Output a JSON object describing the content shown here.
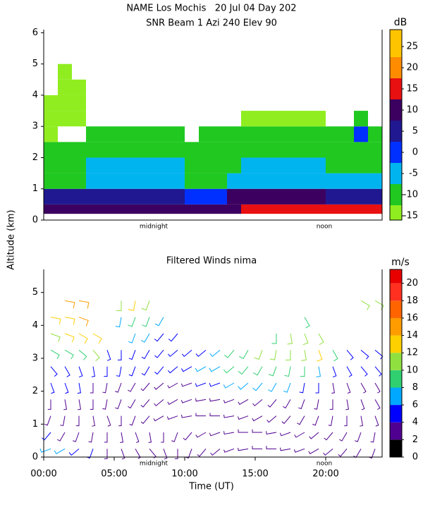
{
  "chart_data": [
    {
      "type": "heatmap",
      "title": "NAME Los Mochis   20 Jul 04 Day 202",
      "subtitle": "SNR Beam 1 Azi 240 Elev 90",
      "xlim": [
        0,
        24
      ],
      "ylim": [
        0,
        6.1
      ],
      "yticks": [
        0,
        1,
        2,
        3,
        4,
        5,
        6
      ],
      "annotations": [
        {
          "text": "midnight",
          "x": 7.8
        },
        {
          "text": "noon",
          "x": 19.9
        }
      ],
      "x_edges": [
        0,
        1,
        2,
        3,
        4,
        5,
        6,
        7,
        8,
        9,
        10,
        11,
        12,
        13,
        14,
        15,
        16,
        17,
        18,
        19,
        20,
        21,
        22,
        23,
        24
      ],
      "y_edges": [
        0.2,
        0.5,
        1,
        1.5,
        2,
        2.5,
        3,
        3.5,
        4,
        4.5,
        5
      ],
      "values": [
        [
          12,
          12,
          12,
          12,
          10,
          10,
          10,
          10,
          8,
          8,
          8,
          10,
          10,
          10,
          13,
          13,
          13,
          13,
          13,
          14,
          14,
          14,
          14,
          14
        ],
        [
          5,
          5,
          5,
          3,
          3,
          3,
          3,
          3,
          3,
          3,
          2,
          2,
          2,
          10,
          10,
          10,
          10,
          10,
          10,
          10,
          6,
          6,
          6,
          6
        ],
        [
          -8,
          -8,
          -8,
          -3,
          -3,
          -3,
          -3,
          -3,
          -3,
          -3,
          -8,
          -8,
          -8,
          -3,
          -3,
          -3,
          -3,
          -3,
          -3,
          -3,
          -5,
          -5,
          -5,
          -5
        ],
        [
          -10,
          -10,
          -10,
          -6,
          -6,
          -6,
          -6,
          -6,
          -6,
          -6,
          -10,
          -10,
          -10,
          -10,
          -7,
          -7,
          -7,
          -7,
          -7,
          -7,
          -8,
          -8,
          -8,
          -8
        ],
        [
          -12,
          -12,
          -12,
          -9,
          -9,
          -9,
          -9,
          -9,
          -9,
          -9,
          -12,
          -12,
          -12,
          -12,
          -9,
          -9,
          -9,
          -9,
          -9,
          -9,
          -10,
          -10,
          -10,
          -10
        ],
        [
          -13,
          null,
          null,
          -12,
          -12,
          -12,
          -12,
          -12,
          -12,
          -12,
          null,
          -11,
          -11,
          -11,
          -11,
          -11,
          -11,
          -11,
          -11,
          -11,
          -11,
          -11,
          0,
          -11
        ],
        [
          -14,
          -14,
          -13,
          null,
          null,
          null,
          null,
          null,
          null,
          null,
          null,
          null,
          null,
          null,
          -14,
          -14,
          -14,
          -14,
          -14,
          -14,
          null,
          null,
          -12,
          null
        ],
        [
          -13,
          -14,
          -14,
          null,
          null,
          null,
          null,
          null,
          null,
          null,
          null,
          null,
          null,
          null,
          null,
          null,
          null,
          null,
          null,
          null,
          null,
          null,
          null,
          null
        ],
        [
          null,
          -14,
          -14,
          null,
          null,
          null,
          null,
          null,
          null,
          null,
          null,
          null,
          null,
          null,
          null,
          null,
          null,
          null,
          null,
          null,
          null,
          null,
          null,
          null
        ],
        [
          null,
          -14,
          null,
          null,
          null,
          null,
          null,
          null,
          null,
          null,
          null,
          null,
          null,
          null,
          null,
          null,
          null,
          null,
          null,
          null,
          null,
          null,
          null,
          null
        ]
      ],
      "colorbar": {
        "label": "dB",
        "clim": [
          -16,
          29
        ],
        "ticks": [
          -15,
          -10,
          -5,
          0,
          5,
          10,
          15,
          20,
          25
        ],
        "levels": [
          -16,
          -12.5,
          -7.5,
          -2.5,
          2.5,
          7.5,
          12.5,
          17.5,
          22.5,
          29
        ],
        "colors": [
          "#90ee20",
          "#20c820",
          "#00b4f0",
          "#0030ff",
          "#201890",
          "#3c0060",
          "#e81010",
          "#ff8c00",
          "#ffc400"
        ]
      }
    },
    {
      "type": "barbs",
      "title": "Filtered Winds nima",
      "xlabel": "Time (UT)",
      "ylabel": "Altitude (km)",
      "xlim": [
        0,
        24
      ],
      "ylim": [
        0,
        5.7
      ],
      "xticks": [
        {
          "value": 0,
          "label": "00:00"
        },
        {
          "value": 5,
          "label": "05:00"
        },
        {
          "value": 10,
          "label": "10:00"
        },
        {
          "value": 15,
          "label": "15:00"
        },
        {
          "value": 20,
          "label": "20:00"
        }
      ],
      "yticks": [
        0,
        1,
        2,
        3,
        4,
        5
      ],
      "annotations": [
        {
          "text": "midnight",
          "x": 7.8
        },
        {
          "text": "noon",
          "x": 19.9
        }
      ],
      "x": [
        0.5,
        1.5,
        2.5,
        3.5,
        4.5,
        5.5,
        6.5,
        7.5,
        8.5,
        9.5,
        10.5,
        11.5,
        12.5,
        13.5,
        14.5,
        15.5,
        16.5,
        17.5,
        18.5,
        19.5,
        20.5,
        21.5,
        22.5,
        23.5
      ],
      "altitudes": [
        0.25,
        0.75,
        1.25,
        1.75,
        2.25,
        2.75,
        3.25,
        3.75,
        4.25,
        4.75
      ],
      "speed": [
        [
          6,
          6,
          5,
          4,
          3,
          3,
          2,
          2,
          3,
          3,
          3,
          3,
          3,
          2,
          2,
          3,
          3,
          3,
          3,
          3,
          3,
          3,
          3,
          3
        ],
        [
          4,
          3,
          3,
          3,
          3,
          3,
          2,
          2,
          2,
          3,
          3,
          3,
          3,
          3,
          3,
          3,
          3,
          3,
          3,
          3,
          3,
          3,
          3,
          3
        ],
        [
          3,
          3,
          3,
          3,
          3,
          2,
          2,
          2,
          2,
          3,
          3,
          3,
          3,
          3,
          3,
          3,
          3,
          3,
          3,
          3,
          2,
          2,
          3,
          3
        ],
        [
          3,
          3,
          3,
          3,
          3,
          3,
          3,
          3,
          3,
          3,
          3,
          3,
          3,
          3,
          3,
          3,
          3,
          3,
          3,
          3,
          3,
          3,
          3,
          3
        ],
        [
          4,
          4,
          4,
          3,
          3,
          3,
          3,
          3,
          3,
          3,
          3,
          4,
          5,
          6,
          7,
          7,
          6,
          6,
          5,
          4,
          3,
          3,
          3,
          3
        ],
        [
          5,
          5,
          5,
          4,
          4,
          4,
          4,
          4,
          4,
          4,
          5,
          6,
          7,
          8,
          9,
          9,
          9,
          8,
          8,
          7,
          5,
          4,
          4,
          4
        ],
        [
          8,
          9,
          9,
          10,
          5,
          5,
          4,
          4,
          4,
          4,
          4,
          5,
          6,
          8,
          9,
          10,
          10,
          10,
          11,
          12,
          9,
          5,
          5,
          5
        ],
        [
          11,
          12,
          13,
          12,
          null,
          null,
          6,
          6,
          5,
          5,
          null,
          null,
          null,
          null,
          null,
          null,
          9,
          10,
          11,
          10,
          null,
          null,
          null,
          null
        ],
        [
          12,
          13,
          14,
          null,
          null,
          7,
          8,
          8,
          7,
          null,
          null,
          null,
          null,
          null,
          null,
          null,
          null,
          null,
          8,
          null,
          null,
          null,
          null,
          null
        ],
        [
          null,
          14,
          14,
          null,
          null,
          10,
          12,
          10,
          null,
          null,
          null,
          null,
          null,
          null,
          null,
          null,
          null,
          null,
          null,
          null,
          null,
          null,
          10,
          10
        ]
      ],
      "direction": [
        [
          250,
          240,
          230,
          200,
          180,
          160,
          150,
          140,
          160,
          180,
          200,
          220,
          230,
          250,
          260,
          270,
          270,
          260,
          250,
          240,
          230,
          220,
          210,
          200
        ],
        [
          220,
          210,
          200,
          190,
          180,
          170,
          160,
          170,
          180,
          200,
          220,
          240,
          250,
          260,
          270,
          270,
          260,
          250,
          240,
          230,
          220,
          210,
          200,
          190
        ],
        [
          200,
          190,
          180,
          170,
          160,
          180,
          200,
          220,
          240,
          250,
          260,
          270,
          270,
          260,
          250,
          240,
          230,
          220,
          210,
          200,
          190,
          180,
          170,
          160
        ],
        [
          180,
          170,
          170,
          180,
          190,
          200,
          210,
          220,
          230,
          240,
          250,
          260,
          260,
          250,
          240,
          230,
          220,
          210,
          200,
          190,
          180,
          170,
          160,
          150
        ],
        [
          160,
          160,
          170,
          180,
          190,
          200,
          210,
          220,
          230,
          240,
          250,
          250,
          250,
          240,
          230,
          220,
          210,
          200,
          190,
          180,
          170,
          160,
          150,
          150
        ],
        [
          140,
          150,
          160,
          170,
          180,
          190,
          200,
          210,
          220,
          230,
          240,
          240,
          240,
          230,
          220,
          210,
          200,
          190,
          180,
          170,
          160,
          150,
          140,
          140
        ],
        [
          120,
          120,
          130,
          140,
          160,
          180,
          200,
          210,
          220,
          230,
          230,
          230,
          230,
          220,
          210,
          200,
          190,
          180,
          170,
          160,
          150,
          140,
          130,
          130
        ],
        [
          110,
          110,
          120,
          120,
          null,
          null,
          200,
          210,
          220,
          220,
          null,
          null,
          null,
          null,
          null,
          null,
          180,
          170,
          160,
          150,
          null,
          null,
          null,
          null
        ],
        [
          100,
          100,
          110,
          null,
          null,
          190,
          200,
          200,
          210,
          null,
          null,
          null,
          null,
          null,
          null,
          null,
          null,
          null,
          150,
          null,
          null,
          null,
          null,
          null
        ],
        [
          null,
          100,
          100,
          null,
          null,
          180,
          190,
          200,
          null,
          null,
          null,
          null,
          null,
          null,
          null,
          null,
          null,
          null,
          null,
          null,
          null,
          null,
          120,
          120
        ]
      ],
      "colorbar": {
        "label": "m/s",
        "clim": [
          0,
          21.6
        ],
        "ticks": [
          0,
          2,
          4,
          6,
          8,
          10,
          12,
          14,
          16,
          18,
          20
        ],
        "levels": [
          0,
          2,
          4,
          6,
          8,
          10,
          12,
          14,
          16,
          18,
          20,
          21.6
        ],
        "colors": [
          "#000000",
          "#500090",
          "#0000ff",
          "#00a8ff",
          "#30d070",
          "#90e040",
          "#ffd000",
          "#ff9c00",
          "#ff6400",
          "#ff3020",
          "#e80000"
        ]
      }
    }
  ]
}
